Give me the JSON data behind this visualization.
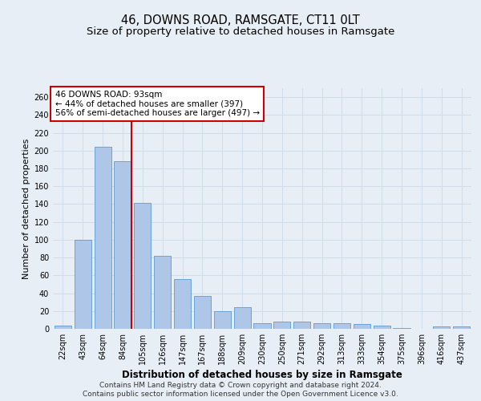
{
  "title": "46, DOWNS ROAD, RAMSGATE, CT11 0LT",
  "subtitle": "Size of property relative to detached houses in Ramsgate",
  "xlabel": "Distribution of detached houses by size in Ramsgate",
  "ylabel": "Number of detached properties",
  "categories": [
    "22sqm",
    "43sqm",
    "64sqm",
    "84sqm",
    "105sqm",
    "126sqm",
    "147sqm",
    "167sqm",
    "188sqm",
    "209sqm",
    "230sqm",
    "250sqm",
    "271sqm",
    "292sqm",
    "313sqm",
    "333sqm",
    "354sqm",
    "375sqm",
    "396sqm",
    "416sqm",
    "437sqm"
  ],
  "values": [
    4,
    100,
    204,
    188,
    141,
    82,
    56,
    37,
    20,
    24,
    6,
    8,
    8,
    6,
    6,
    5,
    4,
    1,
    0,
    3,
    3
  ],
  "bar_color": "#aec6e8",
  "bar_edge_color": "#5b9bd5",
  "vline_x_index": 3,
  "vline_color": "#cc0000",
  "annotation_text": "46 DOWNS ROAD: 93sqm\n← 44% of detached houses are smaller (397)\n56% of semi-detached houses are larger (497) →",
  "annotation_box_color": "#ffffff",
  "annotation_box_edge_color": "#cc0000",
  "ylim": [
    0,
    270
  ],
  "yticks": [
    0,
    20,
    40,
    60,
    80,
    100,
    120,
    140,
    160,
    180,
    200,
    220,
    240,
    260
  ],
  "grid_color": "#d0dde8",
  "background_color": "#e8eef5",
  "footer_line1": "Contains HM Land Registry data © Crown copyright and database right 2024.",
  "footer_line2": "Contains public sector information licensed under the Open Government Licence v3.0.",
  "title_fontsize": 10.5,
  "subtitle_fontsize": 9.5,
  "tick_fontsize": 7,
  "ylabel_fontsize": 8,
  "xlabel_fontsize": 8.5,
  "annotation_fontsize": 7.5,
  "footer_fontsize": 6.5
}
